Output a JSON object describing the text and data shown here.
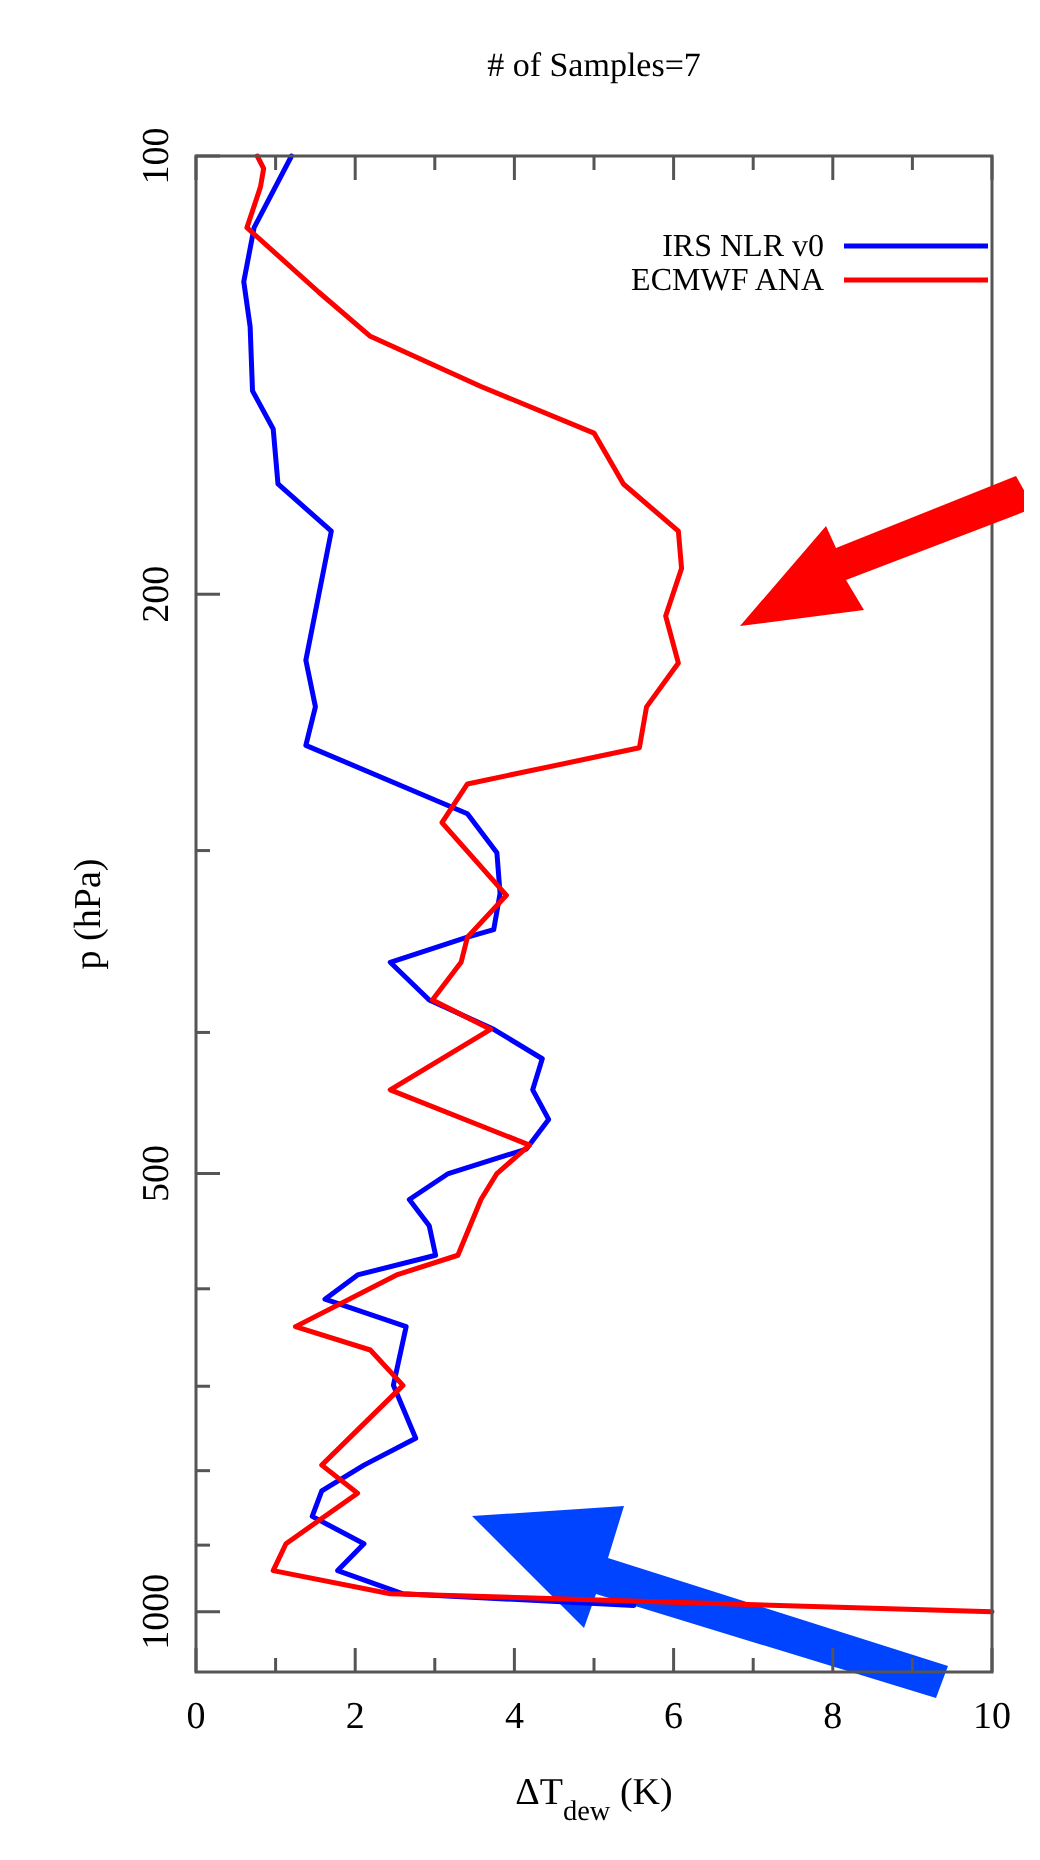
{
  "chart_data": {
    "type": "line",
    "title": "# of Samples=7",
    "xlabel": "ΔT$_{dew}$ (K)",
    "ylabel": "p (hPa)",
    "xlim": [
      0,
      10
    ],
    "xticks": [
      0,
      {
        "value": 1,
        "label": null
      },
      2,
      {
        "value": 3,
        "label": null
      },
      4,
      {
        "value": 5,
        "label": null
      },
      6,
      {
        "value": 7,
        "label": null
      },
      8,
      {
        "value": 9,
        "label": null
      },
      10
    ],
    "ylim": [
      1100,
      100
    ],
    "yticks": [
      100,
      200,
      {
        "value": 300,
        "label": null
      },
      {
        "value": 400,
        "label": null
      },
      500,
      {
        "value": 600,
        "label": null
      },
      {
        "value": 700,
        "label": null
      },
      {
        "value": 800,
        "label": null
      },
      {
        "value": 900,
        "label": null
      },
      1000
    ],
    "log": "y",
    "grid": false,
    "legend": "top right",
    "line_style": "solid",
    "series": [
      {
        "name": "IRS NLR v0",
        "color": "#0000ff",
        "x": [
          1.2,
          0.73,
          0.6,
          0.68,
          0.71,
          0.97,
          1.03,
          1.7,
          1.38,
          1.5,
          1.38,
          3.41,
          3.78,
          3.82,
          3.74,
          3.41,
          2.44,
          2.93,
          3.74,
          4.35,
          4.23,
          4.43,
          4.15,
          3.17,
          2.68,
          2.93,
          3.01,
          2.03,
          1.62,
          2.64,
          2.48,
          2.76,
          2.11,
          1.58,
          1.46,
          2.11,
          1.78,
          2.6,
          5.5
        ],
        "values": [
          100,
          112,
          122,
          131,
          145,
          154,
          168,
          181,
          222,
          239,
          254,
          283,
          301,
          321,
          340,
          344,
          358,
          380,
          398,
          417,
          438,
          459,
          481,
          500,
          521,
          543,
          569,
          587,
          610,
          637,
          699,
          760,
          793,
          826,
          860,
          898,
          937,
          972,
          990
        ]
      },
      {
        "name": "ECMWF ANA",
        "color": "#ff0000",
        "x": [
          0.77,
          0.85,
          0.81,
          0.64,
          1.54,
          2.19,
          3.58,
          5.0,
          5.37,
          6.06,
          6.1,
          5.9,
          6.06,
          5.66,
          5.57,
          3.41,
          3.09,
          3.9,
          3.41,
          3.33,
          2.97,
          3.7,
          2.44,
          4.19,
          3.78,
          3.58,
          3.29,
          2.52,
          1.25,
          2.19,
          2.6,
          1.58,
          2.03,
          1.13,
          0.97,
          2.44,
          10
        ],
        "values": [
          100,
          102,
          105,
          112,
          124,
          133,
          144,
          155,
          168,
          181,
          192,
          207,
          223,
          239,
          255,
          270,
          287,
          322,
          344,
          358,
          380,
          398,
          438,
          478,
          500,
          521,
          569,
          587,
          637,
          661,
          699,
          793,
          829,
          898,
          937,
          972,
          1000
        ]
      }
    ]
  }
}
